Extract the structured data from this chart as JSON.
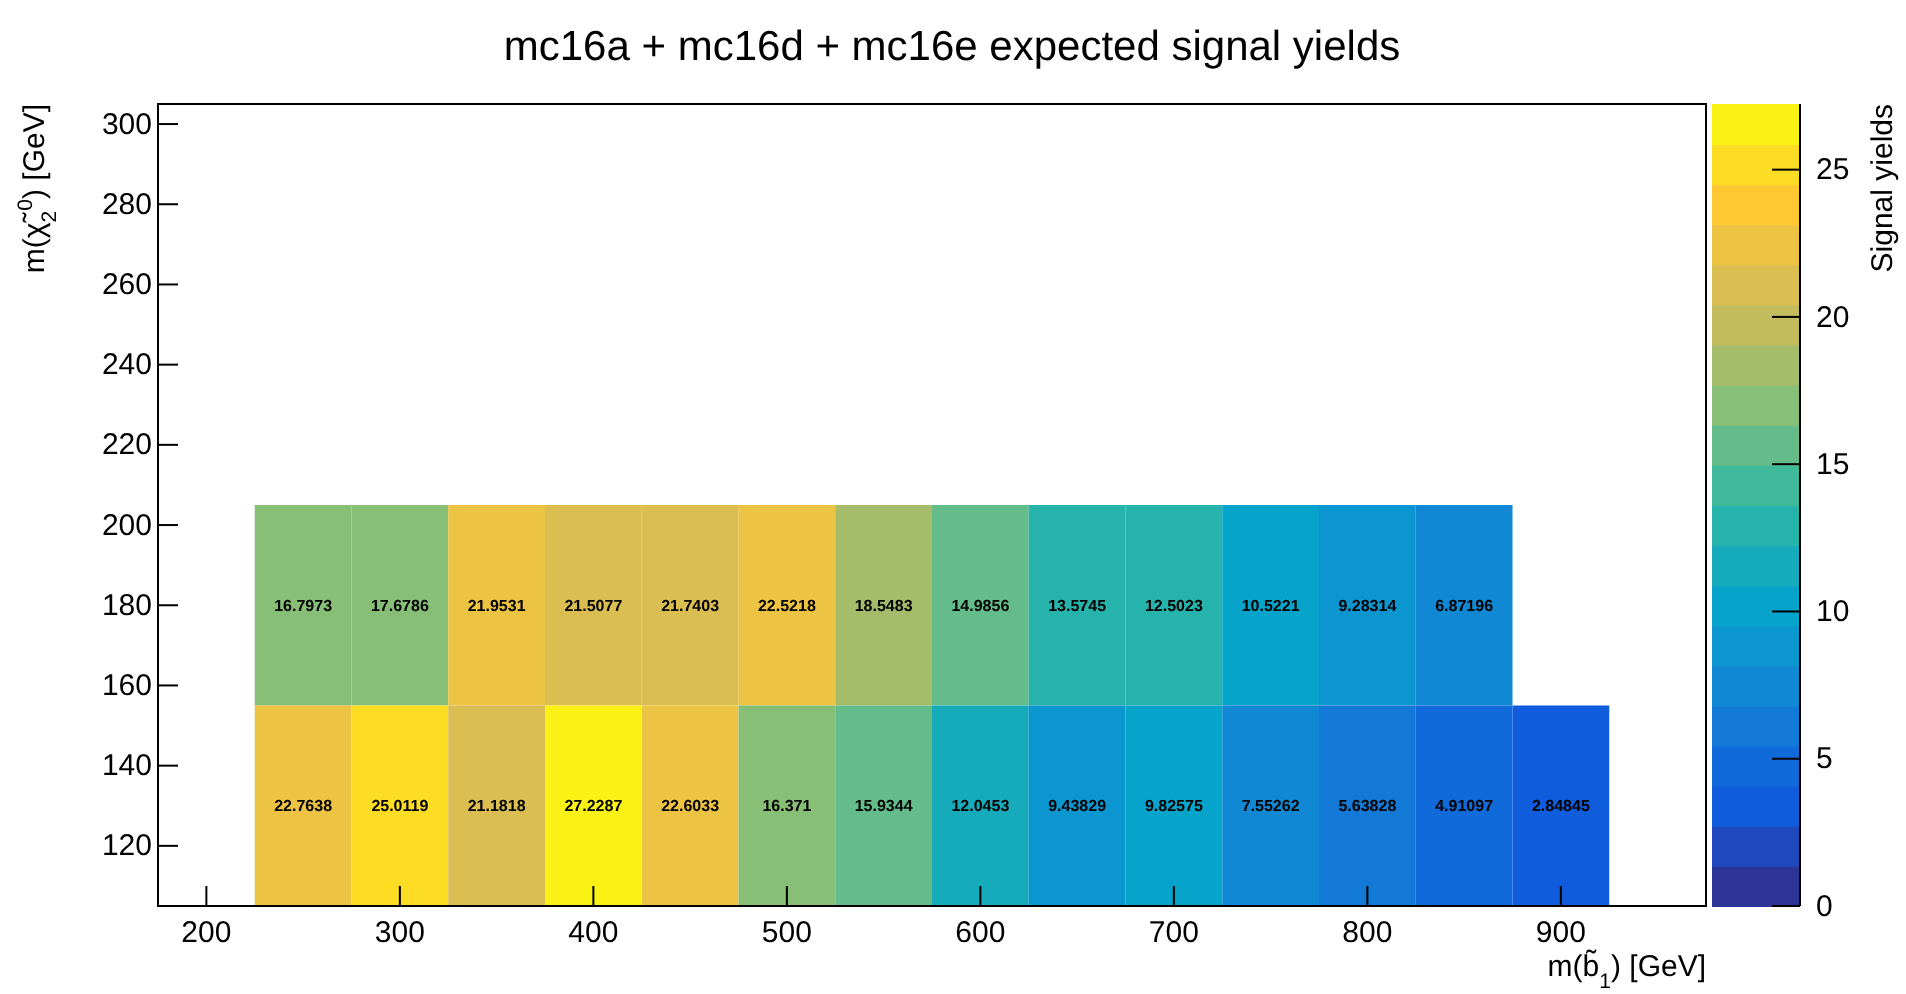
{
  "chart_data": {
    "type": "heatmap",
    "title": "mc16a + mc16d + mc16e expected signal yields",
    "xlabel": "m(b̃$_{1}$) [GeV]",
    "ylabel": "m(χ̃$_{2}$$^{0}$) [GeV]",
    "clabel": "Signal yields",
    "x": [
      250,
      300,
      350,
      400,
      450,
      500,
      550,
      600,
      650,
      700,
      750,
      800,
      850,
      900
    ],
    "y": [
      180,
      130
    ],
    "cells": [
      [
        16.7973,
        17.6786,
        21.9531,
        21.5077,
        21.7403,
        22.5218,
        18.5483,
        14.9856,
        13.5745,
        12.5023,
        10.5221,
        9.28314,
        6.87196,
        null
      ],
      [
        22.7638,
        25.0119,
        21.1818,
        27.2287,
        22.6033,
        16.371,
        15.9344,
        12.0453,
        9.43829,
        9.82575,
        7.55262,
        5.63828,
        4.91097,
        2.84845
      ]
    ],
    "data_labels": true,
    "xlim": [
      175,
      975
    ],
    "xticks": [
      200,
      300,
      400,
      500,
      600,
      700,
      800,
      900
    ],
    "ylim": [
      105,
      305
    ],
    "yticks": [
      120,
      140,
      160,
      180,
      200,
      220,
      240,
      260,
      280,
      300
    ],
    "clim": [
      0,
      27.2287
    ],
    "cticks": [
      0,
      5,
      10,
      15,
      20,
      25
    ]
  }
}
